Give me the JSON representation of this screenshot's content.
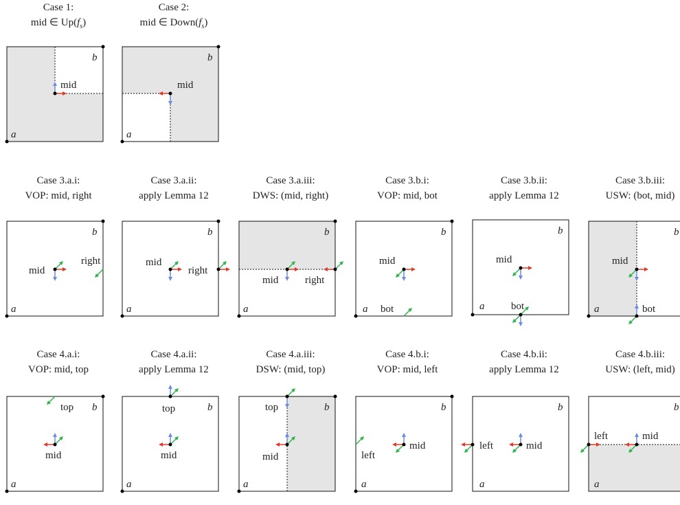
{
  "colors": {
    "region_fill": "#e5e5e5",
    "border": "#111111",
    "red_arrow": "#e03a2a",
    "blue_arrow": "#6b8be0",
    "green_arrow": "#2bb44a"
  },
  "corner_labels": {
    "a": "a",
    "b": "b"
  },
  "cases": [
    {
      "line1": "Case 1:",
      "line2": "mid ∈ Up(f_s)"
    },
    {
      "line1": "Case 2:",
      "line2": "mid ∈ Down(f_s)"
    },
    {
      "line1": "Case 3.a.i:",
      "line2": "VOP: mid, right"
    },
    {
      "line1": "Case 3.a.ii:",
      "line2": "apply Lemma 12"
    },
    {
      "line1": "Case 3.a.iii:",
      "line2": "DWS: (mid, right)"
    },
    {
      "line1": "Case 3.b.i:",
      "line2": "VOP: mid, bot"
    },
    {
      "line1": "Case 3.b.ii:",
      "line2": "apply Lemma 12"
    },
    {
      "line1": "Case 3.b.iii:",
      "line2": "USW: (bot, mid)"
    },
    {
      "line1": "Case 4.a.i:",
      "line2": "VOP: mid, top"
    },
    {
      "line1": "Case 4.a.ii:",
      "line2": "apply Lemma 12"
    },
    {
      "line1": "Case 4.a.iii:",
      "line2": "DSW: (mid, top)"
    },
    {
      "line1": "Case 4.b.i:",
      "line2": "VOP: mid, left"
    },
    {
      "line1": "Case 4.b.ii:",
      "line2": "apply Lemma 12"
    },
    {
      "line1": "Case 4.b.iii:",
      "line2": "USW: (left, mid)"
    }
  ],
  "point_labels": {
    "mid": "mid",
    "right": "right",
    "bot": "bot",
    "top": "top",
    "left": "left"
  }
}
